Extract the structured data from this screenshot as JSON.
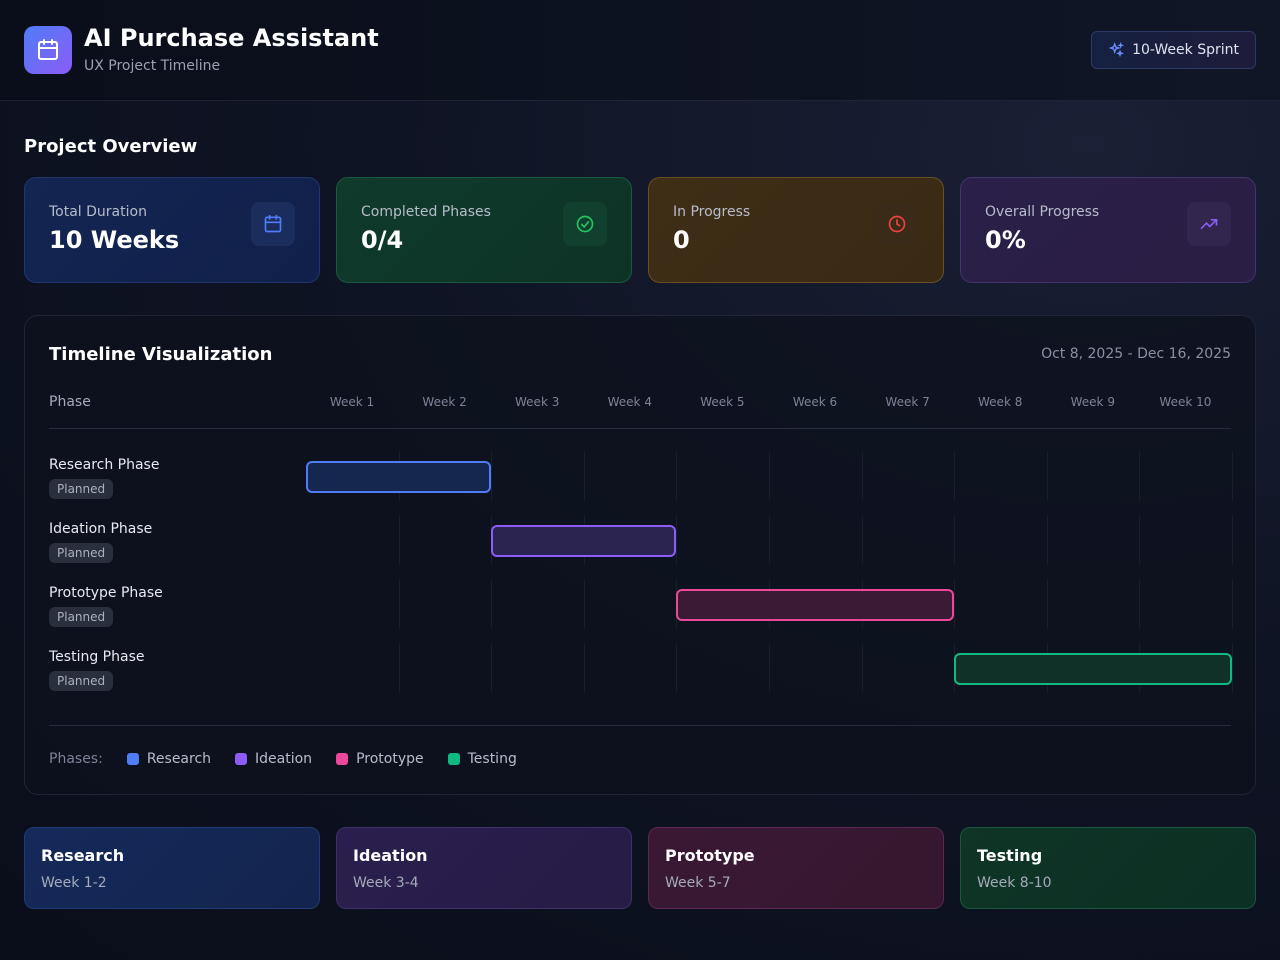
{
  "header": {
    "title": "AI Purchase Assistant",
    "subtitle": "UX Project Timeline",
    "sprint_label": "10-Week Sprint",
    "logo_icon": "calendar-icon"
  },
  "overview": {
    "title": "Project Overview",
    "cards": [
      {
        "label": "Total Duration",
        "value": "10 Weeks",
        "icon": "calendar-icon",
        "color": "#4f7cf7"
      },
      {
        "label": "Completed Phases",
        "value": "0/4",
        "icon": "check-circle-icon",
        "color": "#22c55e"
      },
      {
        "label": "In Progress",
        "value": "0",
        "icon": "clock-icon",
        "color": "#ef4444"
      },
      {
        "label": "Overall Progress",
        "value": "0%",
        "icon": "trending-up-icon",
        "color": "#8b5cf6"
      }
    ]
  },
  "timeline": {
    "title": "Timeline Visualization",
    "date_range": "Oct 8, 2025 - Dec 16, 2025",
    "phase_header": "Phase",
    "weeks": [
      "Week 1",
      "Week 2",
      "Week 3",
      "Week 4",
      "Week 5",
      "Week 6",
      "Week 7",
      "Week 8",
      "Week 9",
      "Week 10"
    ],
    "rows": [
      {
        "name": "Research Phase",
        "status": "Planned",
        "start_week": 1,
        "end_week": 2,
        "color": "#4f7cf7",
        "fill": "#15264f"
      },
      {
        "name": "Ideation Phase",
        "status": "Planned",
        "start_week": 3,
        "end_week": 4,
        "color": "#8b5cf6",
        "fill": "#2b2350"
      },
      {
        "name": "Prototype Phase",
        "status": "Planned",
        "start_week": 5,
        "end_week": 7,
        "color": "#ec4899",
        "fill": "#3a1a35"
      },
      {
        "name": "Testing Phase",
        "status": "Planned",
        "start_week": 8,
        "end_week": 10,
        "color": "#10b981",
        "fill": "#0f3128"
      }
    ],
    "legend_label": "Phases:",
    "legend": [
      {
        "name": "Research",
        "color": "#4f7cf7"
      },
      {
        "name": "Ideation",
        "color": "#8b5cf6"
      },
      {
        "name": "Prototype",
        "color": "#ec4899"
      },
      {
        "name": "Testing",
        "color": "#10b981"
      }
    ]
  },
  "phase_cards": [
    {
      "name": "Research",
      "weeks": "Week 1-2"
    },
    {
      "name": "Ideation",
      "weeks": "Week 3-4"
    },
    {
      "name": "Prototype",
      "weeks": "Week 5-7"
    },
    {
      "name": "Testing",
      "weeks": "Week 8-10"
    }
  ]
}
